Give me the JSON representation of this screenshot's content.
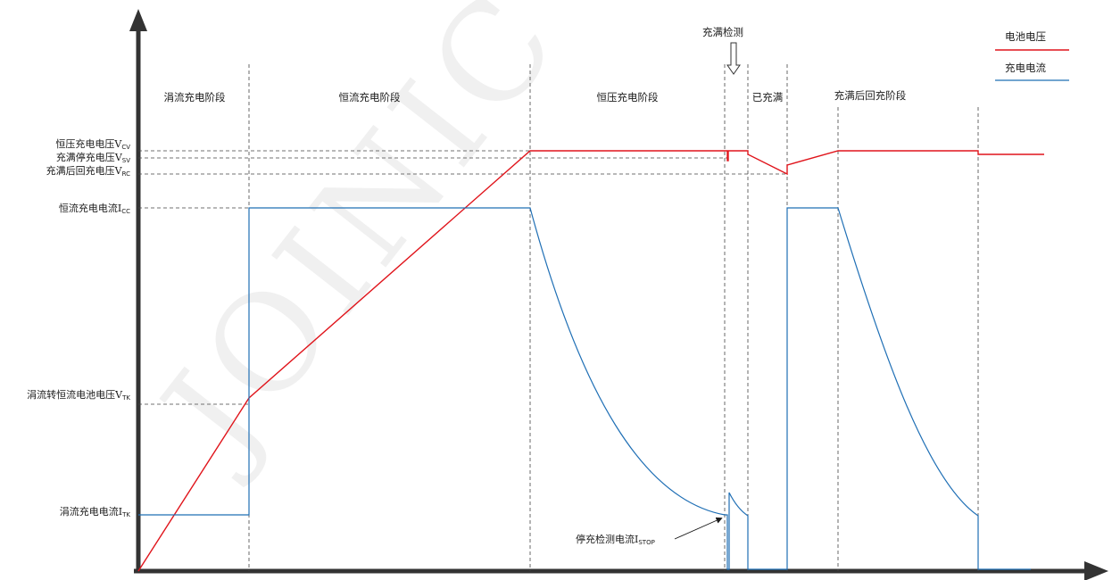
{
  "chart_data": {
    "type": "diagram",
    "phases": [
      {
        "id": "trickle",
        "label": "涓流充电阶段"
      },
      {
        "id": "cc",
        "label": "恒流充电阶段"
      },
      {
        "id": "cv",
        "label": "恒压充电阶段"
      },
      {
        "id": "full",
        "label": "已充满"
      },
      {
        "id": "recharge",
        "label": "充满后回充阶段"
      }
    ],
    "y_labels": [
      {
        "id": "vcv",
        "main": "恒压充电电压",
        "var": "V",
        "sub": "CV"
      },
      {
        "id": "vsv",
        "main": "充满停充电压",
        "var": "V",
        "sub": "SV"
      },
      {
        "id": "vrc",
        "main": "充满后回充电压",
        "var": "V",
        "sub": "RC"
      },
      {
        "id": "icc",
        "main": "恒流充电电流",
        "var": "I",
        "sub": "CC"
      },
      {
        "id": "vtk",
        "main": "涓流转恒流电池电压",
        "var": "V",
        "sub": "TK"
      },
      {
        "id": "itk",
        "main": "涓流充电电流",
        "var": "I",
        "sub": "TK"
      }
    ],
    "annotations": {
      "full_detect": "充满检测",
      "stop_current": {
        "main": "停充检测电流",
        "var": "I",
        "sub": "STOP"
      }
    },
    "legend": [
      {
        "id": "voltage",
        "name": "电池电压",
        "color": "#e0141b"
      },
      {
        "id": "current",
        "name": "充电电流",
        "color": "#1f6fb5"
      }
    ],
    "series": [
      {
        "id": "voltage",
        "name": "电池电压",
        "color": "#e0141b"
      },
      {
        "id": "current",
        "name": "充电电流",
        "color": "#1f6fb5"
      }
    ],
    "grid": false
  }
}
